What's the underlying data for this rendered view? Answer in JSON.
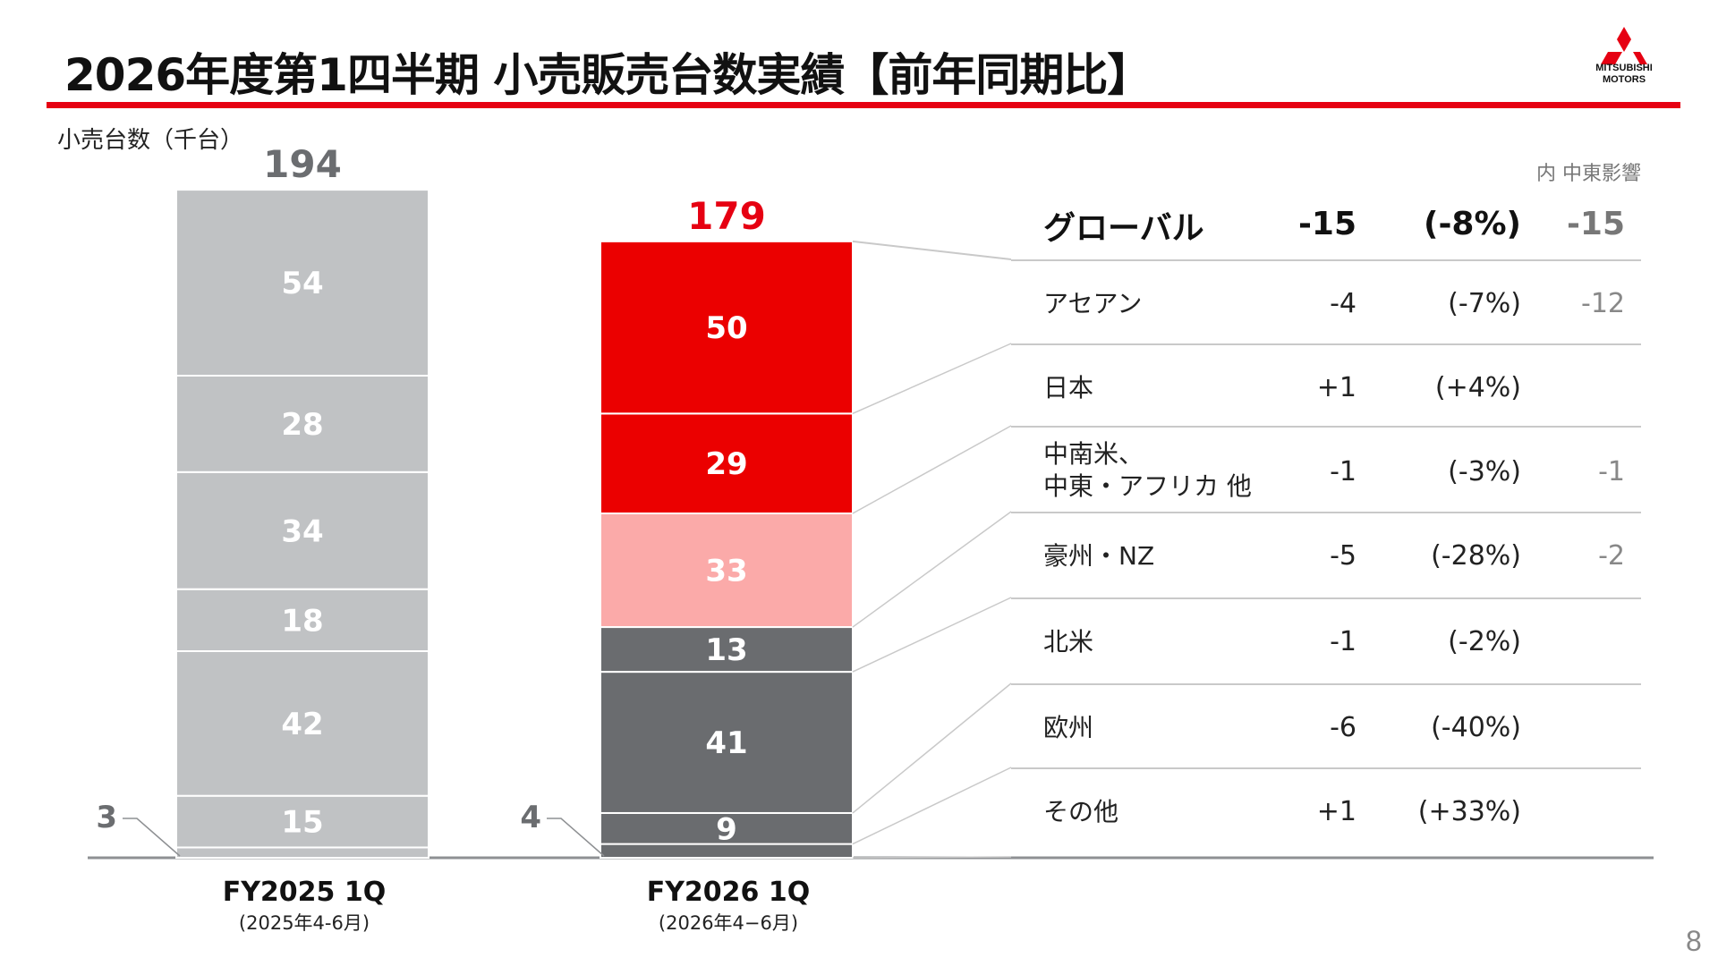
{
  "page": {
    "title": "2026年度第1四半期 小売販売台数実績【前年同期比】",
    "unit_label": "小売台数（千台）",
    "note": "内 中東影響",
    "page_number": "8",
    "logo_lines": [
      "MITSUBISHI",
      "MOTORS"
    ],
    "colors": {
      "accent": "#e60012",
      "gray_light": "#c0c2c4",
      "red": "#eb0000",
      "pink": "#fbaaa9",
      "gray_dark": "#6a6c6f"
    }
  },
  "chart_data": {
    "type": "bar",
    "stacked": true,
    "categories": [
      "FY2025 1Q",
      "FY2026 1Q"
    ],
    "category_sublabels": [
      "(2025年4-6月)",
      "(2026年4−6月)"
    ],
    "totals": [
      194,
      179
    ],
    "segment_order_bottom_to_top": [
      "その他",
      "欧州",
      "北米",
      "豪州・NZ",
      "中南米、中東・アフリカ 他",
      "日本",
      "アセアン"
    ],
    "series": [
      {
        "name": "その他",
        "values": [
          3,
          4
        ]
      },
      {
        "name": "欧州",
        "values": [
          15,
          9
        ]
      },
      {
        "name": "北米",
        "values": [
          42,
          41
        ]
      },
      {
        "name": "豪州・NZ",
        "values": [
          18,
          13
        ]
      },
      {
        "name": "中南米、中東・アフリカ 他",
        "values": [
          34,
          33
        ]
      },
      {
        "name": "日本",
        "values": [
          28,
          29
        ]
      },
      {
        "name": "アセアン",
        "values": [
          54,
          50
        ]
      }
    ],
    "segment_colors": [
      [
        "#c0c2c4",
        "#c0c2c4",
        "#c0c2c4",
        "#c0c2c4",
        "#c0c2c4",
        "#c0c2c4",
        "#c0c2c4"
      ],
      [
        "#6a6c6f",
        "#6a6c6f",
        "#6a6c6f",
        "#6a6c6f",
        "#fbaaa9",
        "#eb0000",
        "#eb0000"
      ]
    ],
    "total_label_colors": [
      "#6b6d70",
      "#e60012"
    ]
  },
  "table": {
    "header": {
      "label": "グローバル",
      "diff": "-15",
      "pct": "(-8%)",
      "mideast": "-15"
    },
    "rows": [
      {
        "label": "アセアン",
        "diff": "-4",
        "pct": "(-7%)",
        "mideast": "-12"
      },
      {
        "label": "日本",
        "diff": "+1",
        "pct": "(+4%)",
        "mideast": ""
      },
      {
        "label_lines": [
          "中南米、",
          "中東・アフリカ 他"
        ],
        "diff": "-1",
        "pct": "(-3%)",
        "mideast": "-1"
      },
      {
        "label": "豪州・NZ",
        "diff": "-5",
        "pct": "(-28%)",
        "mideast": "-2"
      },
      {
        "label": "北米",
        "diff": "-1",
        "pct": "(-2%)",
        "mideast": ""
      },
      {
        "label": "欧州",
        "diff": "-6",
        "pct": "(-40%)",
        "mideast": ""
      },
      {
        "label": "その他",
        "diff": "+1",
        "pct": "(+33%)",
        "mideast": ""
      }
    ]
  }
}
